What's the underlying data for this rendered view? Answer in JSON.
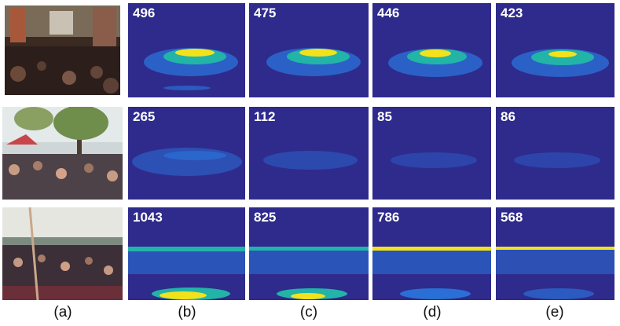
{
  "column_labels": [
    "(a)",
    "(b)",
    "(c)",
    "(d)",
    "(e)"
  ],
  "rows": [
    {
      "counts": [
        "496",
        "475",
        "446",
        "423"
      ]
    },
    {
      "counts": [
        "265",
        "112",
        "85",
        "86"
      ]
    },
    {
      "counts": [
        "1043",
        "825",
        "786",
        "568"
      ]
    }
  ],
  "colors": {
    "map_background": "#2f2b8c",
    "heat_low": "#2a6fd6",
    "heat_mid": "#23b4a8",
    "heat_high": "#f2e21c",
    "count_text": "#ffffff"
  }
}
